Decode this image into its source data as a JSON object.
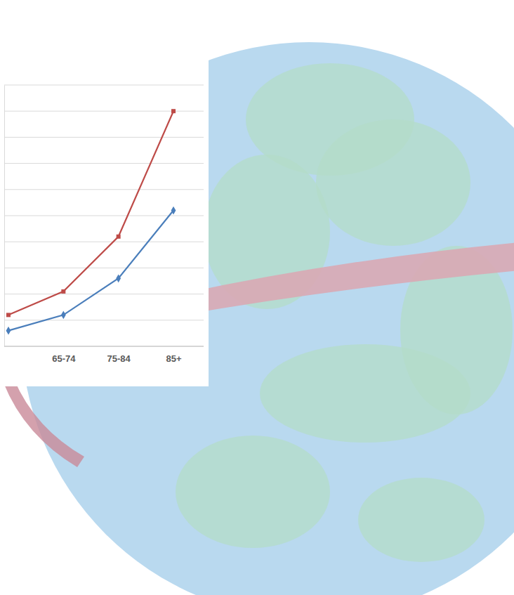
{
  "chart_data": {
    "type": "line",
    "categories": [
      null,
      "65-74",
      "75-84",
      "85+"
    ],
    "series": [
      {
        "color": "#be4b48",
        "marker": "square",
        "values": [
          1.2,
          2.1,
          4.2,
          9.0
        ]
      },
      {
        "color": "#4a7ebb",
        "marker": "diamond",
        "values": [
          0.6,
          1.2,
          2.6,
          5.2
        ]
      }
    ],
    "ylim": [
      0,
      10
    ],
    "yticks": [
      0,
      1,
      2,
      3,
      4,
      5,
      6,
      7,
      8,
      9,
      10
    ],
    "grid": true,
    "tick_labels": "x"
  }
}
